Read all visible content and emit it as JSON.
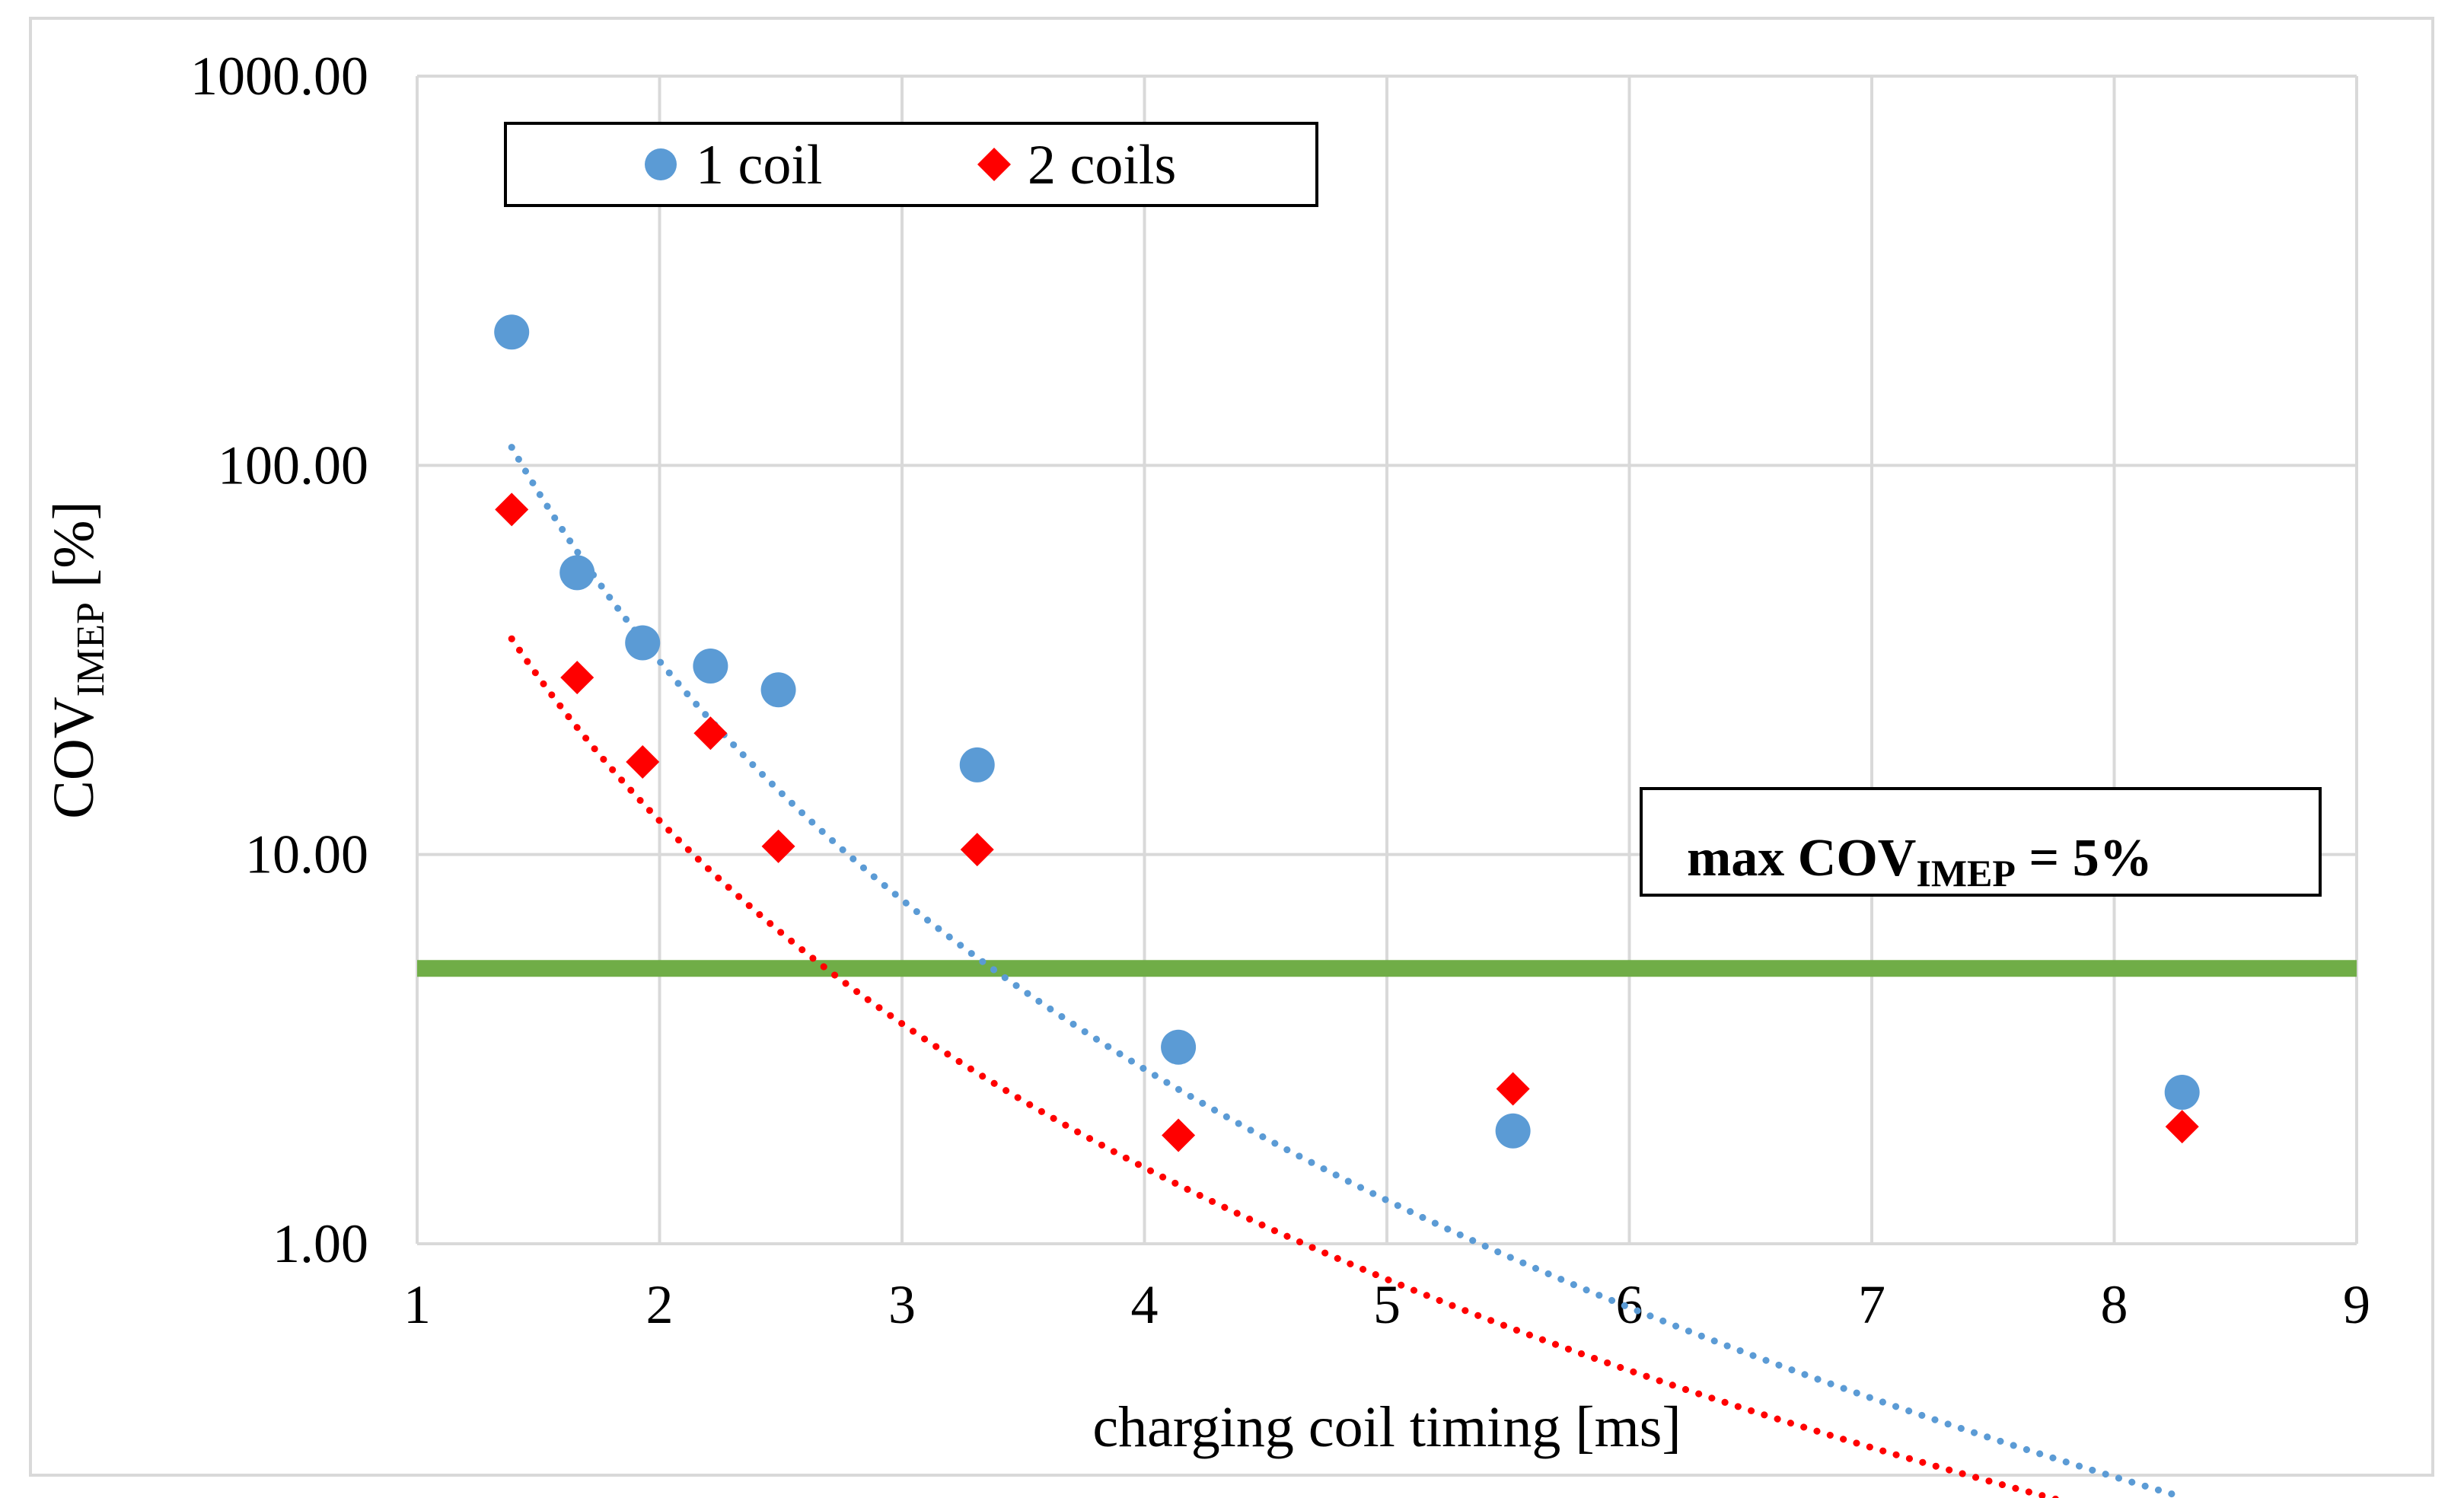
{
  "chart_data": {
    "type": "scatter",
    "title": "",
    "xlabel": "charging coil timing [ms]",
    "ylabel_main": "COV",
    "ylabel_sub": "IMEP",
    "ylabel_suffix": " [%]",
    "xlim": [
      1,
      9
    ],
    "ylim": [
      1,
      1000
    ],
    "yscale": "log",
    "grid": true,
    "legend_position": "top-left",
    "x_ticks": [
      "1",
      "2",
      "3",
      "4",
      "5",
      "6",
      "7",
      "8",
      "9"
    ],
    "y_ticks": [
      "1.00",
      "10.00",
      "100.00",
      "1000.00"
    ],
    "series": [
      {
        "name": "1 coil",
        "marker": "circle",
        "color": "#5b9bd5",
        "x": [
          1.39,
          1.66,
          1.93,
          2.21,
          2.49,
          3.31,
          4.14,
          5.52,
          8.28
        ],
        "y": [
          220,
          53,
          35,
          30.5,
          26.5,
          17,
          3.2,
          1.95,
          2.45
        ],
        "trendline": {
          "type": "power",
          "color": "#5b9bd5",
          "a": 350,
          "b": -3.48,
          "x_range": [
            1.39,
            8.28
          ]
        }
      },
      {
        "name": "2 coils",
        "marker": "diamond",
        "color": "#ff0000",
        "x": [
          1.39,
          1.66,
          1.93,
          2.21,
          2.49,
          3.31,
          4.14,
          5.52,
          8.28
        ],
        "y": [
          77,
          28.5,
          17.3,
          20.5,
          10.5,
          10.3,
          1.9,
          2.5,
          2.0
        ],
        "trendline": {
          "type": "power",
          "color": "#ff0000",
          "a": 95,
          "b": -2.96,
          "x_range": [
            1.39,
            8.28
          ]
        }
      }
    ],
    "threshold": {
      "value": 5.1,
      "color": "#70ad47",
      "label_prefix": "max COV",
      "label_sub": "IMEP",
      "label_suffix": " = 5%"
    }
  }
}
